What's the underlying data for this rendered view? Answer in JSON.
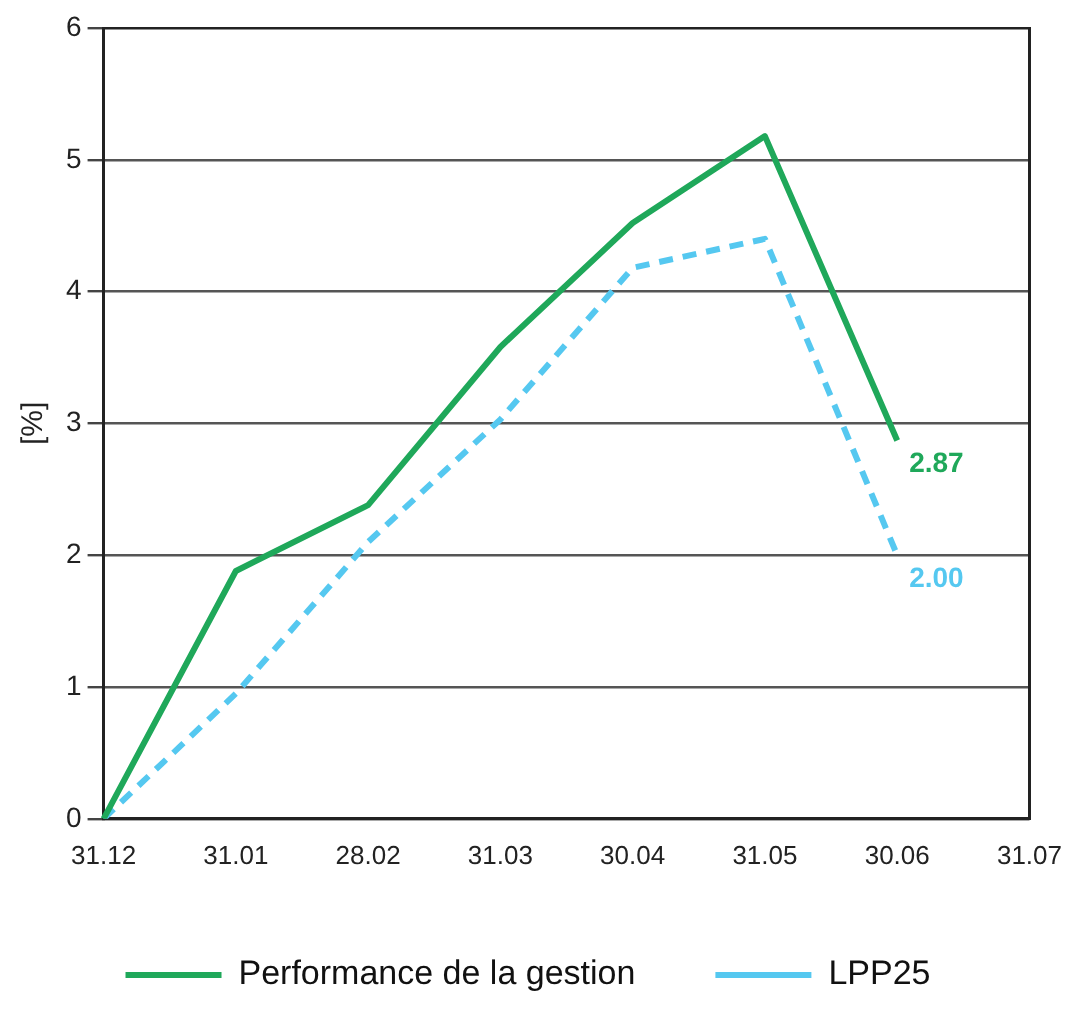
{
  "chart_data": {
    "type": "line",
    "ylabel": "[%]",
    "categories": [
      "31.12",
      "31.01",
      "28.02",
      "31.03",
      "30.04",
      "31.05",
      "30.06",
      "31.07"
    ],
    "series": [
      {
        "name": "Performance de la gestion",
        "color": "#1fa85a",
        "line_style": "solid",
        "values": [
          0,
          1.88,
          2.38,
          3.58,
          4.52,
          5.18,
          2.87,
          null
        ],
        "value_labels": [
          null,
          null,
          null,
          null,
          null,
          null,
          "2.87",
          null
        ]
      },
      {
        "name": "LPP25",
        "color": "#55c8f0",
        "line_style": "dashed",
        "values": [
          0,
          0.95,
          2.1,
          3.03,
          4.18,
          4.4,
          2.0,
          null
        ],
        "value_labels": [
          null,
          null,
          null,
          null,
          null,
          null,
          "2.00",
          null
        ]
      }
    ],
    "ylim": [
      0,
      6
    ],
    "yticks": [
      0,
      1,
      2,
      3,
      4,
      5,
      6
    ],
    "grid": "y",
    "legend": "bottom",
    "marker": "none"
  }
}
